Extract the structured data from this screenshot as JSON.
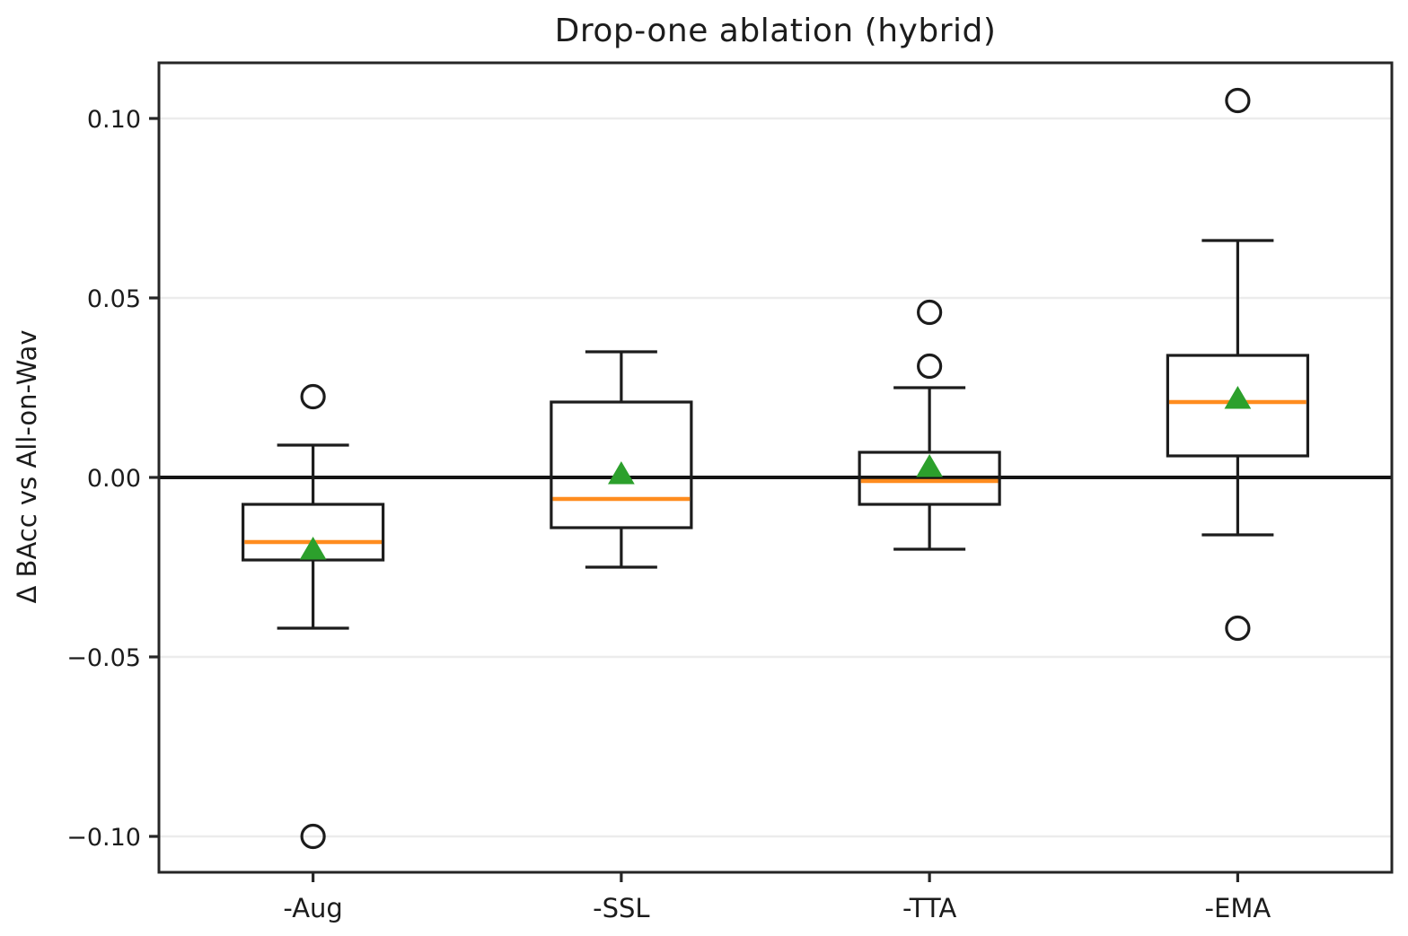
{
  "chart_data": {
    "type": "box",
    "title": "Drop-one ablation (hybrid)",
    "xlabel": "",
    "ylabel": "Δ BAcc vs All-on-Wav",
    "categories": [
      "-Aug",
      "-SSL",
      "-TTA",
      "-EMA"
    ],
    "series": [
      {
        "name": "-Aug",
        "whisker_low": -0.042,
        "q1": -0.023,
        "median": -0.018,
        "q3": -0.0075,
        "whisker_high": 0.009,
        "mean": -0.02,
        "outliers": [
          0.0225,
          -0.1
        ]
      },
      {
        "name": "-SSL",
        "whisker_low": -0.025,
        "q1": -0.014,
        "median": -0.006,
        "q3": 0.021,
        "whisker_high": 0.035,
        "mean": 0.001,
        "outliers": []
      },
      {
        "name": "-TTA",
        "whisker_low": -0.02,
        "q1": -0.0075,
        "median": -0.001,
        "q3": 0.007,
        "whisker_high": 0.025,
        "mean": 0.003,
        "outliers": [
          0.046,
          0.031
        ]
      },
      {
        "name": "-EMA",
        "whisker_low": -0.016,
        "q1": 0.006,
        "median": 0.021,
        "q3": 0.034,
        "whisker_high": 0.066,
        "mean": 0.022,
        "outliers": [
          0.105,
          -0.042
        ]
      }
    ],
    "yticks": [
      {
        "value": -0.1,
        "label": "−0.10"
      },
      {
        "value": -0.05,
        "label": "−0.05"
      },
      {
        "value": 0.0,
        "label": "0.00"
      },
      {
        "value": 0.05,
        "label": "0.05"
      },
      {
        "value": 0.1,
        "label": "0.10"
      }
    ],
    "ylim": [
      -0.11,
      0.1155
    ],
    "grid": "horizontal",
    "zero_line": true,
    "legend": "none",
    "colors": {
      "box_stroke": "#1c1c1c",
      "median": "#ff8c1f",
      "mean": "#2ca02c",
      "grid": "#ececec",
      "zero_line": "#141414",
      "spine": "#262626",
      "text": "#1c1c1c"
    }
  }
}
